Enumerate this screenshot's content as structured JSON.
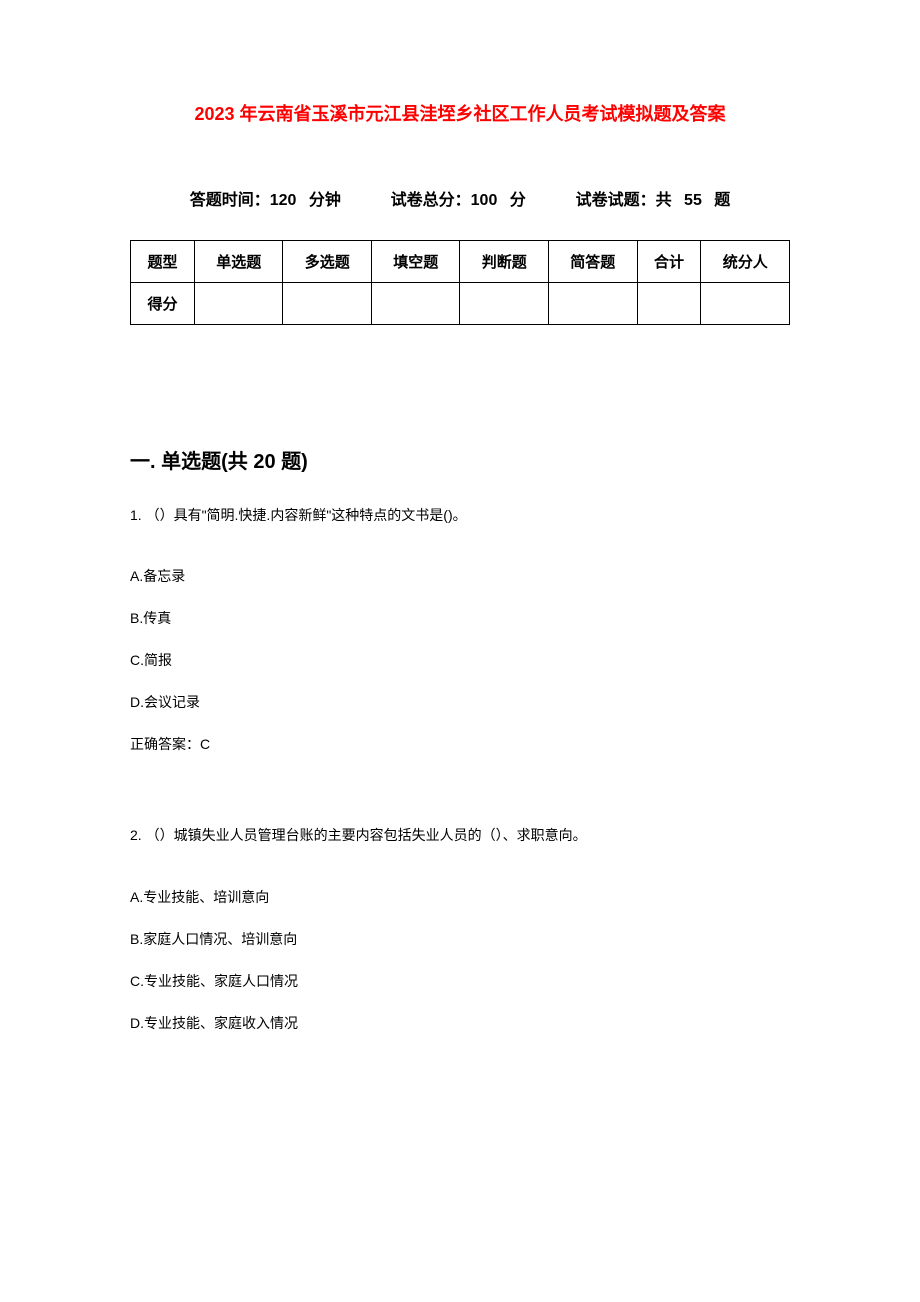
{
  "title": "2023 年云南省玉溪市元江县洼垤乡社区工作人员考试模拟题及答案",
  "exam_info": {
    "time_label": "答题时间：",
    "time_value": "120 分钟",
    "total_label": "试卷总分：",
    "total_value": "100 分",
    "count_label": "试卷试题：",
    "count_value": "共 55 题"
  },
  "score_table": {
    "columns": [
      "题型",
      "单选题",
      "多选题",
      "填空题",
      "判断题",
      "简答题",
      "合计",
      "统分人"
    ],
    "row_label": "得分",
    "column_widths": [
      "12%",
      "12%",
      "12%",
      "12%",
      "12%",
      "12%",
      "12%",
      "16%"
    ]
  },
  "section": {
    "heading": "一. 单选题(共 20 题)"
  },
  "questions": [
    {
      "number": "1.",
      "text": "（）具有\"简明.快捷.内容新鲜\"这种特点的文书是()。",
      "options": [
        "A.备忘录",
        "B.传真",
        "C.简报",
        "D.会议记录"
      ],
      "answer_label": "正确答案：",
      "answer_value": "C"
    },
    {
      "number": "2.",
      "text": "（）城镇失业人员管理台账的主要内容包括失业人员的（）、求职意向。",
      "options": [
        "A.专业技能、培训意向",
        "B.家庭人口情况、培训意向",
        "C.专业技能、家庭人口情况",
        "D.专业技能、家庭收入情况"
      ]
    }
  ],
  "colors": {
    "title_color": "#ff0000",
    "text_color": "#000000",
    "background_color": "#ffffff",
    "border_color": "#000000"
  }
}
